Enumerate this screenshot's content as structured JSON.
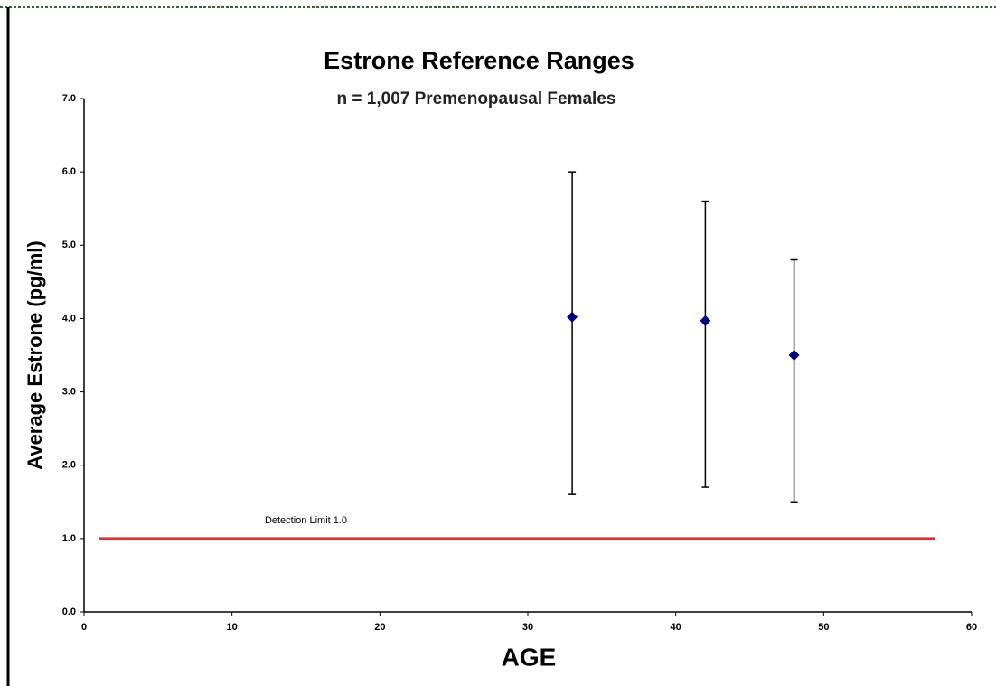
{
  "chart_data": {
    "type": "scatter",
    "title": "Estrone Reference Ranges",
    "subtitle": "n = 1,007 Premenopausal Females",
    "x_label": "AGE",
    "y_label": "Average Estrone (pg/ml)",
    "xlim": [
      0,
      60
    ],
    "xticks": [
      0,
      10,
      20,
      30,
      40,
      50,
      60
    ],
    "ylim": [
      0,
      7
    ],
    "yticks": [
      {
        "value": 0,
        "label": "0.0"
      },
      {
        "value": 1,
        "label": "1.0"
      },
      {
        "value": 2,
        "label": "2.0"
      },
      {
        "value": 3,
        "label": "3.0"
      },
      {
        "value": 4,
        "label": "4.0"
      },
      {
        "value": 5,
        "label": "5.0"
      },
      {
        "value": 6,
        "label": "6.0"
      },
      {
        "value": 7,
        "label": "7.0"
      }
    ],
    "grid": false,
    "series": [
      {
        "color": "#000080",
        "x": [
          33,
          42,
          48
        ],
        "values": [
          4.02,
          3.97,
          3.5
        ],
        "lower": [
          1.6,
          1.7,
          1.5
        ],
        "upper": [
          6.0,
          5.6,
          4.8
        ]
      }
    ],
    "reference_line": {
      "label": "Detection Limit 1.0",
      "value": 1.0,
      "x": [
        1,
        57.5
      ],
      "color": "#ff2020"
    }
  }
}
